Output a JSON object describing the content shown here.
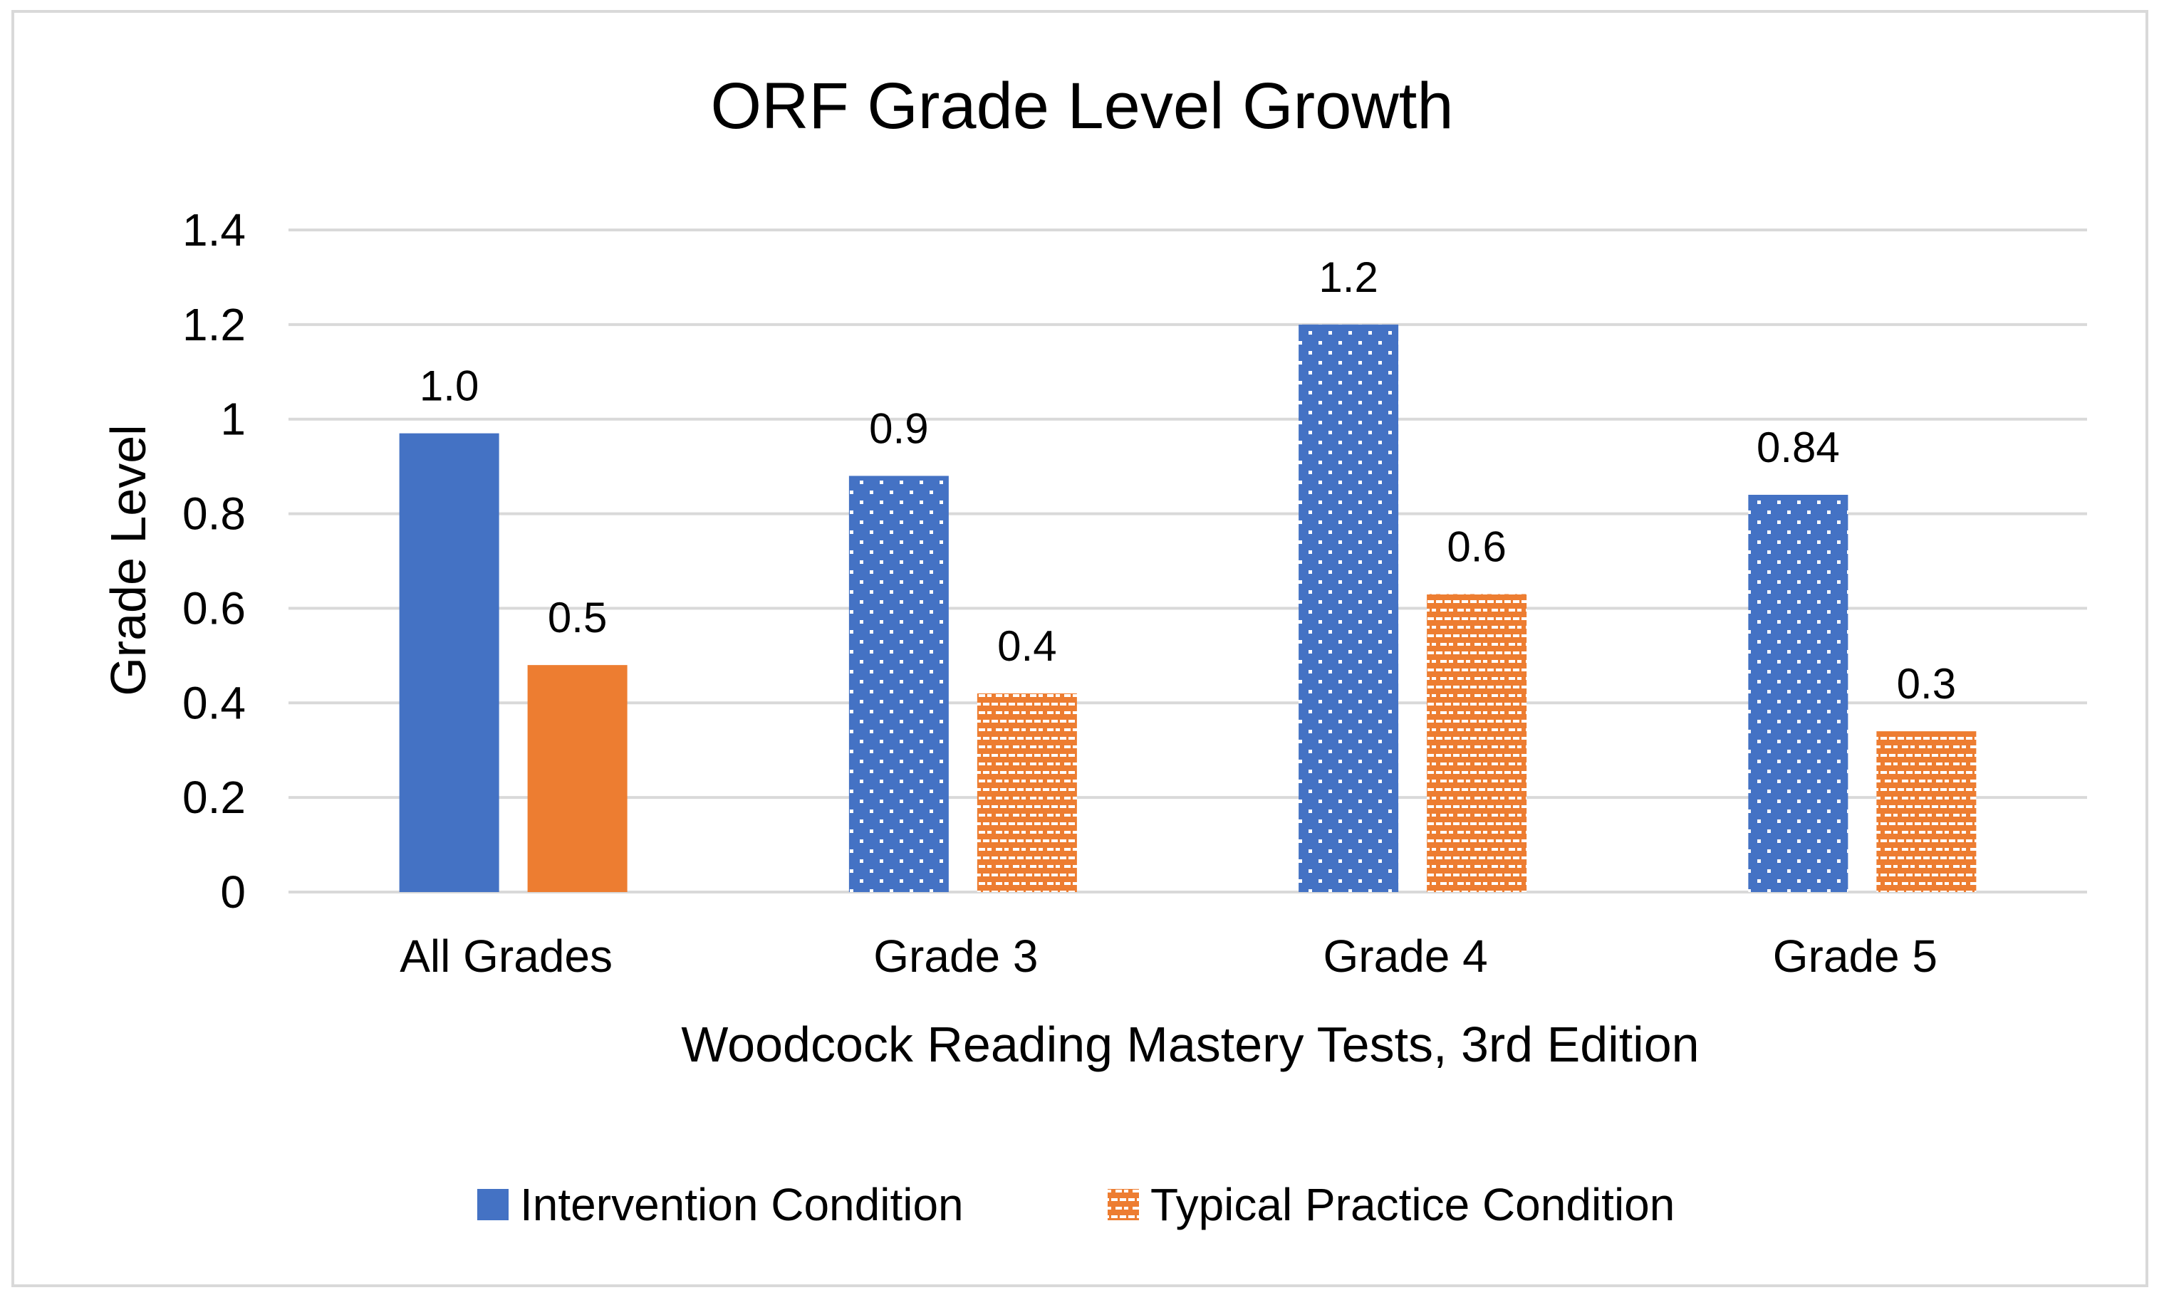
{
  "chart_data": {
    "type": "bar",
    "title": "ORF Grade Level Growth",
    "xlabel": "Woodcock Reading Mastery Tests, 3rd Edition",
    "ylabel": "Grade Level",
    "ylim": [
      0,
      1.4
    ],
    "yticks": [
      0,
      0.2,
      0.4,
      0.6,
      0.8,
      1,
      1.2,
      1.4
    ],
    "ytick_labels": [
      "0",
      "0.2",
      "0.4",
      "0.6",
      "0.8",
      "1",
      "1.2",
      "1.4"
    ],
    "grid": true,
    "legend_position": "bottom",
    "categories": [
      "All Grades",
      "Grade 3",
      "Grade 4",
      "Grade 5"
    ],
    "series": [
      {
        "name": "Intervention Condition",
        "color": "#4472c4",
        "values": [
          0.97,
          0.88,
          1.2,
          0.84
        ],
        "labels": [
          "1.0",
          "0.9",
          "1.2",
          "0.84"
        ],
        "patterned": [
          false,
          true,
          true,
          true
        ]
      },
      {
        "name": "Typical Practice Condition",
        "color": "#ed7d31",
        "values": [
          0.48,
          0.42,
          0.63,
          0.34
        ],
        "labels": [
          "0.5",
          "0.4",
          "0.6",
          "0.3"
        ],
        "patterned": [
          false,
          true,
          true,
          true
        ]
      }
    ]
  }
}
